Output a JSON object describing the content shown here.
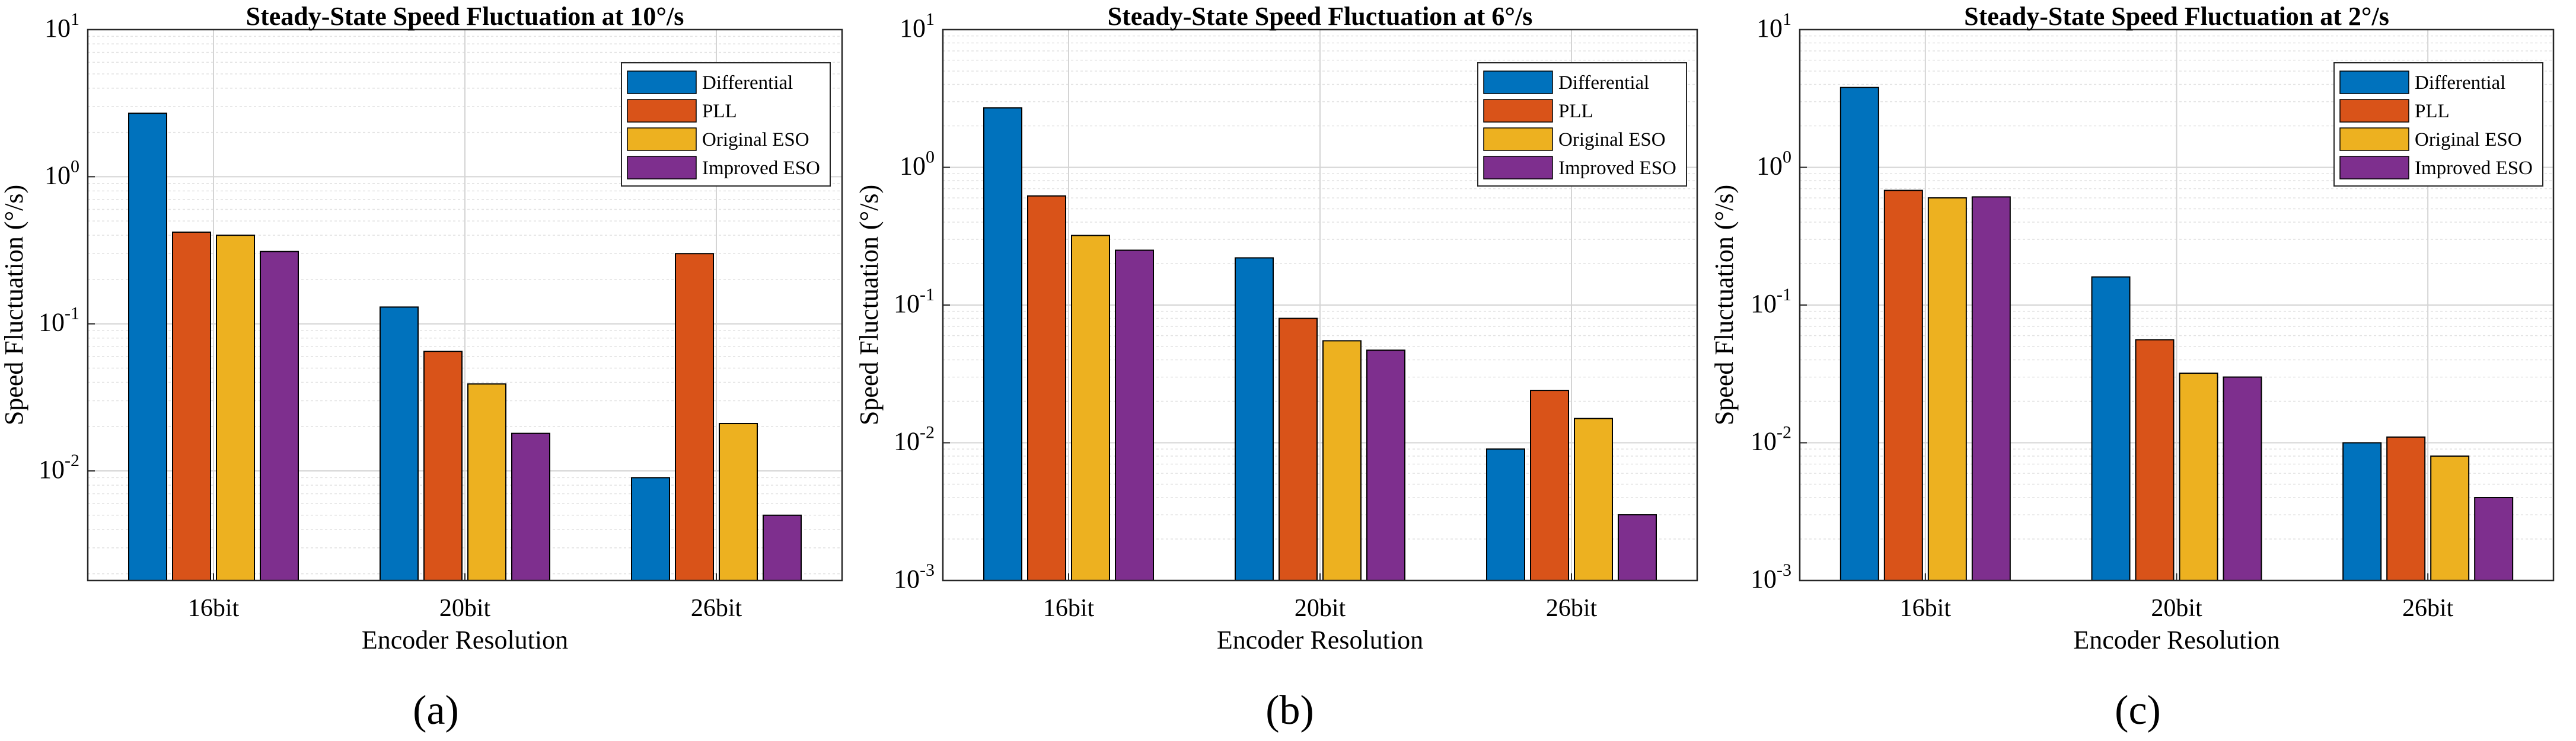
{
  "chart_data": [
    {
      "type": "bar",
      "title": "Steady-State Speed Fluctuation at 10°/s",
      "xlabel": "Encoder Resolution",
      "ylabel": "Speed Fluctuation (°/s)",
      "yscale": "log",
      "ylim": [
        0.0018,
        10
      ],
      "yticks": [
        {
          "base": "10",
          "exp": "-2",
          "value": 0.01
        },
        {
          "base": "10",
          "exp": "-1",
          "value": 0.1
        },
        {
          "base": "10",
          "exp": "0",
          "value": 1
        },
        {
          "base": "10",
          "exp": "1",
          "value": 10
        }
      ],
      "categories": [
        "16bit",
        "20bit",
        "26bit"
      ],
      "series": [
        {
          "name": "Differential",
          "color": "#0072BD",
          "values": [
            2.7,
            0.13,
            0.009
          ]
        },
        {
          "name": "PLL",
          "color": "#D95319",
          "values": [
            0.42,
            0.065,
            0.3
          ]
        },
        {
          "name": "Original ESO",
          "color": "#EDB120",
          "values": [
            0.4,
            0.039,
            0.021
          ]
        },
        {
          "name": "Improved ESO",
          "color": "#7E2F8E",
          "values": [
            0.31,
            0.018,
            0.005
          ]
        }
      ],
      "legend_position": "top-right",
      "grid": true,
      "panel_label": "(a)"
    },
    {
      "type": "bar",
      "title": "Steady-State Speed Fluctuation at 6°/s",
      "xlabel": "Encoder Resolution",
      "ylabel": "Speed Fluctuation (°/s)",
      "yscale": "log",
      "ylim": [
        0.001,
        10
      ],
      "yticks": [
        {
          "base": "10",
          "exp": "-3",
          "value": 0.001
        },
        {
          "base": "10",
          "exp": "-2",
          "value": 0.01
        },
        {
          "base": "10",
          "exp": "-1",
          "value": 0.1
        },
        {
          "base": "10",
          "exp": "0",
          "value": 1
        },
        {
          "base": "10",
          "exp": "1",
          "value": 10
        }
      ],
      "categories": [
        "16bit",
        "20bit",
        "26bit"
      ],
      "series": [
        {
          "name": "Differential",
          "color": "#0072BD",
          "values": [
            2.7,
            0.22,
            0.009
          ]
        },
        {
          "name": "PLL",
          "color": "#D95319",
          "values": [
            0.62,
            0.08,
            0.024
          ]
        },
        {
          "name": "Original ESO",
          "color": "#EDB120",
          "values": [
            0.32,
            0.055,
            0.015
          ]
        },
        {
          "name": "Improved ESO",
          "color": "#7E2F8E",
          "values": [
            0.25,
            0.047,
            0.003
          ]
        }
      ],
      "legend_position": "top-right",
      "grid": true,
      "panel_label": "(b)"
    },
    {
      "type": "bar",
      "title": "Steady-State Speed Fluctuation at 2°/s",
      "xlabel": "Encoder Resolution",
      "ylabel": "Speed Fluctuation (°/s)",
      "yscale": "log",
      "ylim": [
        0.001,
        10
      ],
      "yticks": [
        {
          "base": "10",
          "exp": "-3",
          "value": 0.001
        },
        {
          "base": "10",
          "exp": "-2",
          "value": 0.01
        },
        {
          "base": "10",
          "exp": "-1",
          "value": 0.1
        },
        {
          "base": "10",
          "exp": "0",
          "value": 1
        },
        {
          "base": "10",
          "exp": "1",
          "value": 10
        }
      ],
      "categories": [
        "16bit",
        "20bit",
        "26bit"
      ],
      "series": [
        {
          "name": "Differential",
          "color": "#0072BD",
          "values": [
            3.8,
            0.16,
            0.01
          ]
        },
        {
          "name": "PLL",
          "color": "#D95319",
          "values": [
            0.68,
            0.056,
            0.011
          ]
        },
        {
          "name": "Original ESO",
          "color": "#EDB120",
          "values": [
            0.6,
            0.032,
            0.008
          ]
        },
        {
          "name": "Improved ESO",
          "color": "#7E2F8E",
          "values": [
            0.61,
            0.03,
            0.004
          ]
        }
      ],
      "legend_position": "top-right",
      "grid": true,
      "panel_label": "(c)"
    }
  ]
}
